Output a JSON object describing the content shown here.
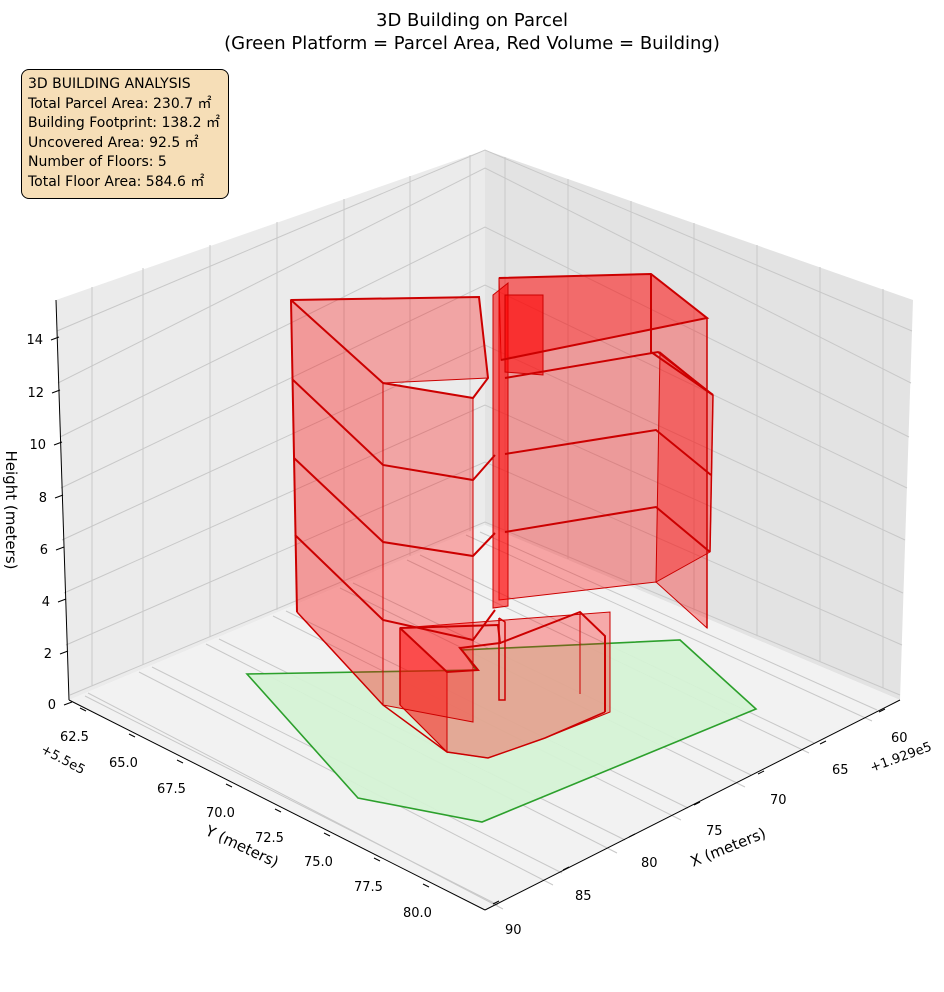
{
  "chart_data": {
    "type": "3d-polygon",
    "title_line1": "3D Building on Parcel",
    "title_line2": "(Green Platform = Parcel Area, Red Volume = Building)",
    "xlabel": "X (meters)",
    "ylabel": "Y (meters)",
    "zlabel": "Height (meters)",
    "x_ticks": [
      "60",
      "65",
      "70",
      "75",
      "80",
      "85",
      "90"
    ],
    "x_offset": "+1.929e5",
    "y_ticks": [
      "62.5",
      "65.0",
      "67.5",
      "70.0",
      "72.5",
      "75.0",
      "77.5",
      "80.0"
    ],
    "y_offset": "+5.5e5",
    "z_ticks": [
      "0",
      "2",
      "4",
      "6",
      "8",
      "10",
      "12",
      "14"
    ],
    "grid": true,
    "parcel_color": "#2ca02c",
    "parcel_fill": "#d5f2d5",
    "building_color": "#ff0000",
    "building_edge": "#cc0000",
    "floors": 5
  },
  "info": {
    "heading": "3D BUILDING ANALYSIS",
    "parcel_area": "Total Parcel Area: 230.7 ㎡",
    "footprint": "Building Footprint: 138.2 ㎡",
    "uncovered": "Uncovered Area: 92.5 ㎡",
    "floors": "Number of Floors: 5",
    "floor_area": "Total Floor Area: 584.6 ㎡"
  }
}
